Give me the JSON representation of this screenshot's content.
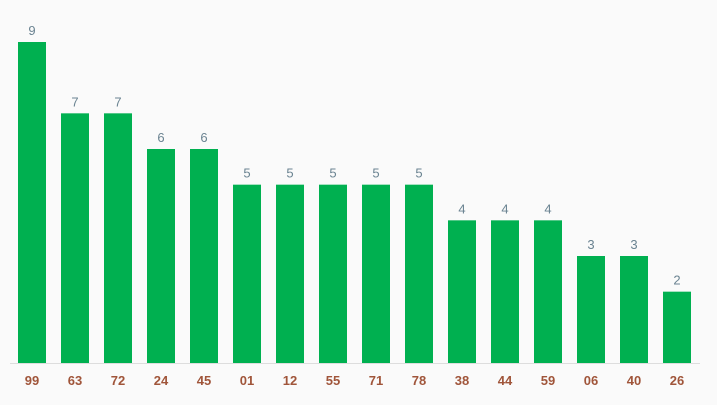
{
  "chart_data": {
    "type": "bar",
    "categories": [
      "99",
      "63",
      "72",
      "24",
      "45",
      "01",
      "12",
      "55",
      "71",
      "78",
      "38",
      "44",
      "59",
      "06",
      "40",
      "26"
    ],
    "values": [
      9,
      7,
      7,
      6,
      6,
      5,
      5,
      5,
      5,
      5,
      4,
      4,
      4,
      3,
      3,
      2
    ],
    "title": "",
    "xlabel": "",
    "ylabel": "",
    "ylim": [
      0,
      9
    ],
    "grid": false,
    "data_labels": true,
    "colors": {
      "bar": "#00b050",
      "value_label": "#6a8391",
      "category_label": "#a0553a",
      "axis": "#dddddd",
      "background": "#fafafa"
    }
  }
}
